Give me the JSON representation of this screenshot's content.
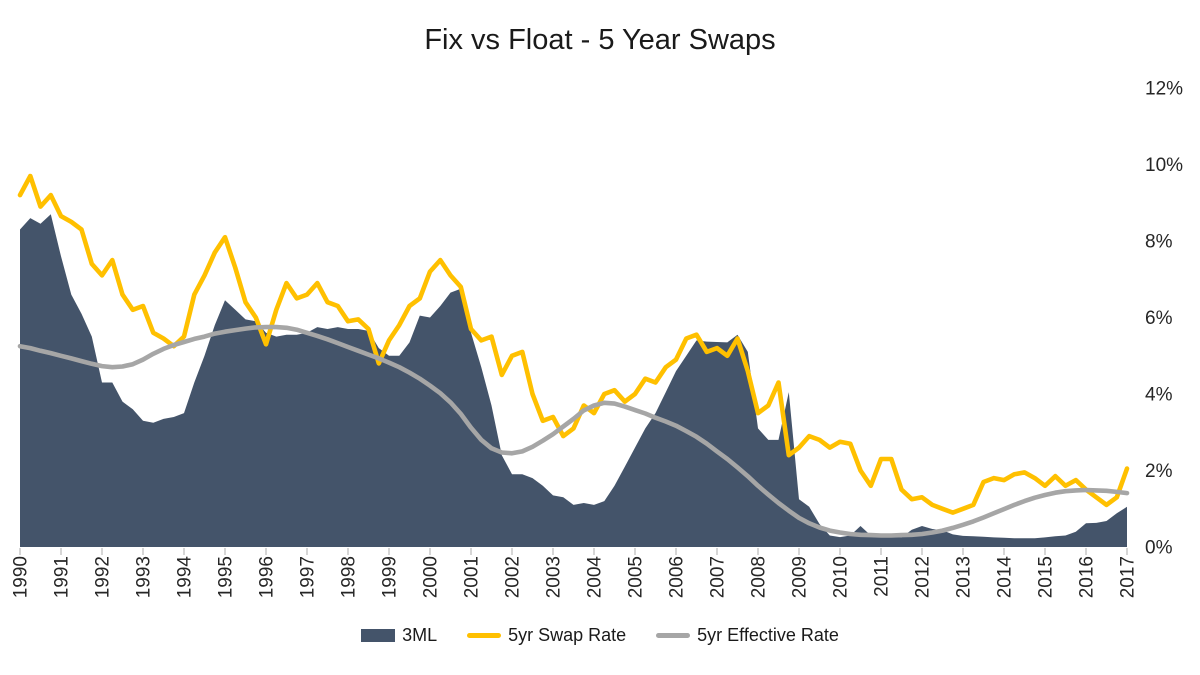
{
  "title": "Fix vs Float - 5 Year Swaps",
  "legend": {
    "items": [
      {
        "label": "3ML",
        "swatch": "area-swatch",
        "color": "#44546A"
      },
      {
        "label": "5yr Swap Rate",
        "swatch": "line-swatch",
        "color": "#FFC000"
      },
      {
        "label": "5yr Effective Rate",
        "swatch": "line-swatch",
        "color": "#A6A6A6"
      }
    ]
  },
  "colors": {
    "area_3ml": "#44546A",
    "swap_line": "#FFC000",
    "effective_line": "#A6A6A6",
    "tick": "#BFBFBF",
    "axis_text": "#262626",
    "background": "#FFFFFF"
  },
  "chart_data": {
    "type": "area",
    "subtype": "combo-area-and-lines",
    "title": "Fix vs Float - 5 Year Swaps",
    "xlabel": "",
    "ylabel": "",
    "x_start": 1990,
    "x_step": 0.25,
    "x_end": 2017,
    "ylim": [
      0,
      12
    ],
    "y_tick_step": 2,
    "y_axis_position": "right",
    "y_tick_labels": [
      "0%",
      "2%",
      "4%",
      "6%",
      "8%",
      "10%",
      "12%"
    ],
    "grid": false,
    "legend_position": "bottom",
    "categories": [
      "1990",
      "1991",
      "1992",
      "1993",
      "1994",
      "1995",
      "1996",
      "1997",
      "1998",
      "1999",
      "2000",
      "2001",
      "2002",
      "2003",
      "2004",
      "2005",
      "2006",
      "2007",
      "2008",
      "2009",
      "2010",
      "2011",
      "2012",
      "2013",
      "2014",
      "2015",
      "2016",
      "2017"
    ],
    "series": [
      {
        "name": "3ML",
        "type": "area",
        "color": "#44546A",
        "values": [
          8.3,
          8.6,
          8.45,
          8.7,
          7.6,
          6.6,
          6.1,
          5.5,
          4.3,
          4.3,
          3.8,
          3.6,
          3.3,
          3.25,
          3.35,
          3.4,
          3.5,
          4.3,
          5.0,
          5.8,
          6.45,
          6.2,
          5.95,
          5.9,
          5.6,
          5.5,
          5.55,
          5.55,
          5.6,
          5.75,
          5.7,
          5.75,
          5.7,
          5.7,
          5.65,
          5.2,
          5.0,
          5.0,
          5.35,
          6.05,
          6.0,
          6.3,
          6.65,
          6.75,
          5.6,
          4.7,
          3.7,
          2.4,
          1.9,
          1.9,
          1.8,
          1.6,
          1.35,
          1.3,
          1.1,
          1.15,
          1.1,
          1.2,
          1.6,
          2.1,
          2.6,
          3.1,
          3.5,
          4.05,
          4.6,
          5.0,
          5.4,
          5.37,
          5.36,
          5.35,
          5.55,
          5.1,
          3.1,
          2.8,
          2.8,
          4.05,
          1.25,
          1.05,
          0.6,
          0.3,
          0.26,
          0.3,
          0.55,
          0.3,
          0.3,
          0.28,
          0.25,
          0.45,
          0.55,
          0.47,
          0.44,
          0.33,
          0.29,
          0.28,
          0.27,
          0.25,
          0.24,
          0.23,
          0.23,
          0.23,
          0.25,
          0.28,
          0.3,
          0.4,
          0.62,
          0.63,
          0.68,
          0.88,
          1.05
        ]
      },
      {
        "name": "5yr Swap Rate",
        "type": "line",
        "color": "#FFC000",
        "values": [
          9.2,
          9.7,
          8.9,
          9.2,
          8.65,
          8.5,
          8.3,
          7.4,
          7.1,
          7.5,
          6.6,
          6.2,
          6.3,
          5.6,
          5.45,
          5.25,
          5.5,
          6.6,
          7.1,
          7.7,
          8.1,
          7.3,
          6.4,
          6.0,
          5.3,
          6.2,
          6.9,
          6.5,
          6.6,
          6.9,
          6.4,
          6.3,
          5.9,
          5.95,
          5.7,
          4.8,
          5.4,
          5.8,
          6.3,
          6.5,
          7.2,
          7.5,
          7.1,
          6.8,
          5.7,
          5.4,
          5.5,
          4.5,
          5.0,
          5.1,
          4.0,
          3.3,
          3.4,
          2.9,
          3.1,
          3.7,
          3.5,
          4.0,
          4.1,
          3.8,
          4.0,
          4.4,
          4.3,
          4.7,
          4.9,
          5.45,
          5.55,
          5.1,
          5.2,
          5.0,
          5.45,
          4.6,
          3.5,
          3.7,
          4.3,
          2.4,
          2.6,
          2.9,
          2.8,
          2.6,
          2.75,
          2.7,
          2.0,
          1.6,
          2.3,
          2.3,
          1.5,
          1.25,
          1.3,
          1.1,
          1.0,
          0.9,
          1.0,
          1.1,
          1.7,
          1.8,
          1.75,
          1.9,
          1.95,
          1.8,
          1.6,
          1.85,
          1.6,
          1.75,
          1.5,
          1.3,
          1.1,
          1.3,
          2.05
        ]
      },
      {
        "name": "5yr Effective Rate",
        "type": "line",
        "color": "#A6A6A6",
        "values": [
          5.25,
          5.2,
          5.13,
          5.07,
          5.0,
          4.93,
          4.86,
          4.79,
          4.73,
          4.7,
          4.72,
          4.78,
          4.9,
          5.05,
          5.18,
          5.28,
          5.36,
          5.44,
          5.5,
          5.58,
          5.63,
          5.67,
          5.71,
          5.74,
          5.75,
          5.75,
          5.73,
          5.68,
          5.6,
          5.52,
          5.43,
          5.33,
          5.23,
          5.13,
          5.03,
          4.93,
          4.82,
          4.7,
          4.56,
          4.4,
          4.22,
          4.02,
          3.78,
          3.48,
          3.12,
          2.8,
          2.58,
          2.47,
          2.45,
          2.5,
          2.62,
          2.78,
          2.95,
          3.15,
          3.35,
          3.57,
          3.7,
          3.77,
          3.75,
          3.67,
          3.58,
          3.49,
          3.38,
          3.28,
          3.17,
          3.03,
          2.88,
          2.7,
          2.5,
          2.3,
          2.08,
          1.85,
          1.6,
          1.37,
          1.15,
          0.95,
          0.76,
          0.62,
          0.51,
          0.43,
          0.38,
          0.34,
          0.32,
          0.31,
          0.3,
          0.3,
          0.31,
          0.32,
          0.34,
          0.38,
          0.43,
          0.5,
          0.58,
          0.67,
          0.77,
          0.88,
          0.99,
          1.1,
          1.2,
          1.29,
          1.36,
          1.42,
          1.46,
          1.48,
          1.49,
          1.48,
          1.47,
          1.44,
          1.41
        ]
      }
    ]
  }
}
